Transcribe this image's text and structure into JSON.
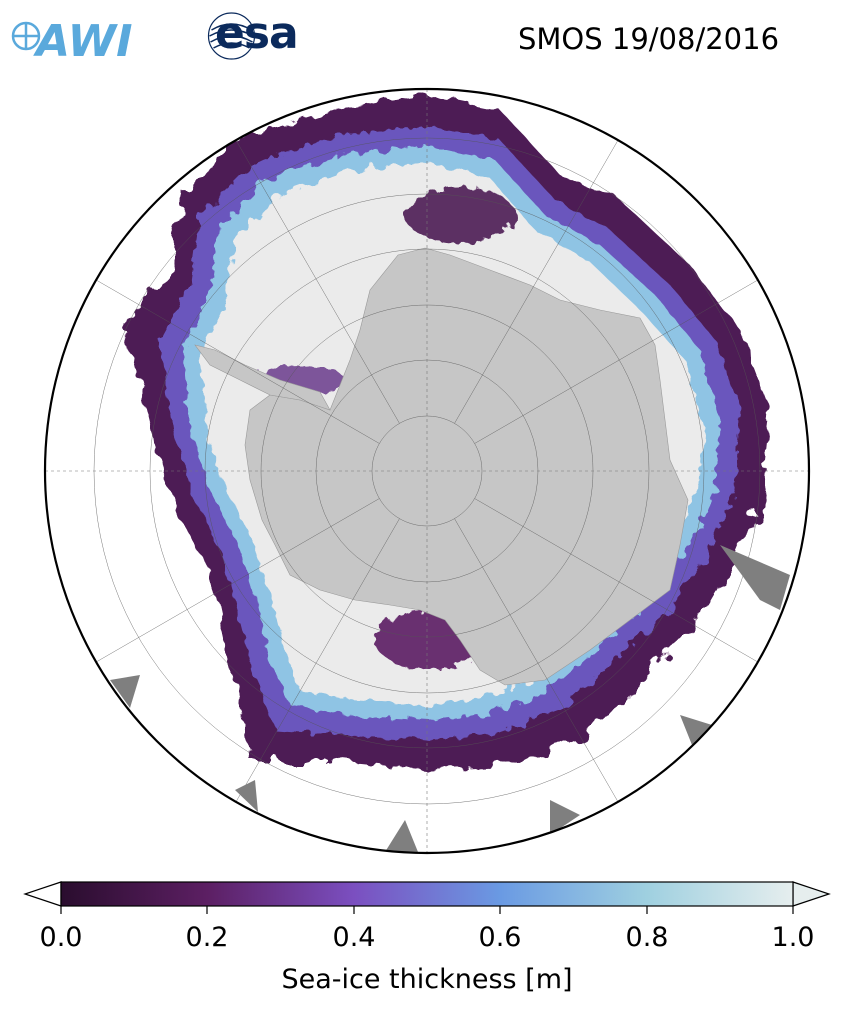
{
  "header": {
    "title": "SMOS 19/08/2016",
    "logo_awi_text": "AWI",
    "logo_esa_text": "esa"
  },
  "colorbar": {
    "label": "Sea-ice thickness [m]",
    "ticks": [
      "0.0",
      "0.2",
      "0.4",
      "0.6",
      "0.8",
      "1.0"
    ],
    "tick_values": [
      0.0,
      0.2,
      0.4,
      0.6,
      0.8,
      1.0
    ],
    "colors": [
      "#2a0d2e",
      "#5c1f63",
      "#7b4fc0",
      "#6a9ae3",
      "#9fd0e0",
      "#e6eeee"
    ]
  },
  "map": {
    "projection": "south-polar-stereographic",
    "land_color": "#c6c6c6",
    "thick_ice_color": "#ebebeb",
    "ocean_color": "#ffffff"
  }
}
